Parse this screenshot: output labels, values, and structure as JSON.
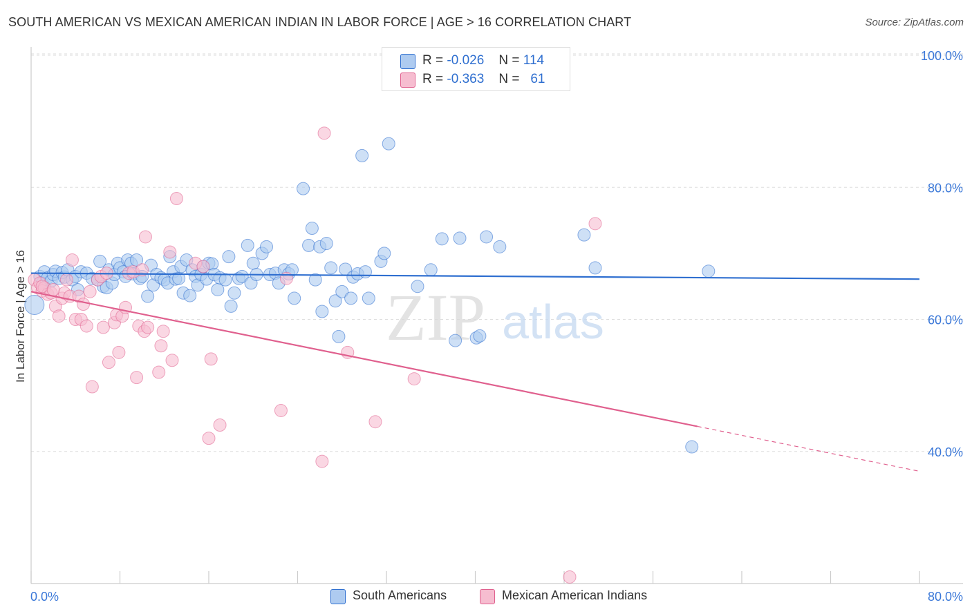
{
  "title": "SOUTH AMERICAN VS MEXICAN AMERICAN INDIAN IN LABOR FORCE | AGE > 16 CORRELATION CHART",
  "source": "Source: ZipAtlas.com",
  "watermark": {
    "zip": "ZIP",
    "atlas": "atlas"
  },
  "colors": {
    "blue": "#2f6fd0",
    "blue_fill": "#aecbf0",
    "pink": "#e0608e",
    "pink_fill": "#f6bdd0",
    "axis_text": "#3b78d8"
  },
  "legend": {
    "rows": [
      {
        "r_label": "R =",
        "r_value": "-0.026",
        "n_label": "N =",
        "n_value": "114"
      },
      {
        "r_label": "R =",
        "r_value": "-0.363",
        "n_label": "N =",
        "n_value": "61"
      }
    ]
  },
  "chart_data": {
    "type": "scatter",
    "title": "SOUTH AMERICAN VS MEXICAN AMERICAN INDIAN IN LABOR FORCE | AGE > 16 CORRELATION CHART",
    "xlabel": "",
    "ylabel": "In Labor Force | Age > 16",
    "xlim": [
      0,
      80
    ],
    "ylim": [
      20,
      100
    ],
    "x_tick_labels": [
      "0.0%",
      "80.0%"
    ],
    "y_ticks": [
      40,
      60,
      80,
      100
    ],
    "y_tick_labels": [
      "40.0%",
      "60.0%",
      "80.0%",
      "100.0%"
    ],
    "grid": true,
    "legend_position": "top-center",
    "series": [
      {
        "name": "South Americans",
        "r": -0.026,
        "n": 114,
        "trend": {
          "x": [
            0,
            80
          ],
          "y": [
            67.0,
            66.1
          ]
        },
        "points": [
          [
            0.3,
            62.2
          ],
          [
            0.8,
            66.5
          ],
          [
            1.0,
            65.5
          ],
          [
            1.2,
            67.2
          ],
          [
            1.5,
            66.3
          ],
          [
            1.8,
            65.8
          ],
          [
            2.0,
            66.8
          ],
          [
            2.2,
            67.3
          ],
          [
            2.5,
            66.2
          ],
          [
            2.8,
            67.1
          ],
          [
            3.0,
            66.4
          ],
          [
            3.3,
            67.5
          ],
          [
            3.7,
            66.0
          ],
          [
            4.0,
            66.5
          ],
          [
            4.2,
            64.5
          ],
          [
            4.5,
            67.2
          ],
          [
            5.0,
            67.0
          ],
          [
            5.5,
            66.2
          ],
          [
            6.0,
            66.0
          ],
          [
            6.2,
            68.8
          ],
          [
            6.5,
            65.0
          ],
          [
            6.8,
            64.8
          ],
          [
            7.0,
            67.5
          ],
          [
            7.3,
            65.5
          ],
          [
            7.5,
            66.8
          ],
          [
            7.8,
            68.5
          ],
          [
            8.0,
            67.8
          ],
          [
            8.3,
            67.2
          ],
          [
            8.5,
            66.5
          ],
          [
            8.7,
            69.0
          ],
          [
            9.0,
            68.5
          ],
          [
            9.2,
            66.9
          ],
          [
            9.5,
            69.0
          ],
          [
            9.8,
            66.2
          ],
          [
            10.0,
            66.5
          ],
          [
            10.5,
            63.5
          ],
          [
            10.8,
            68.2
          ],
          [
            11.0,
            65.2
          ],
          [
            11.3,
            66.8
          ],
          [
            11.7,
            66.3
          ],
          [
            12.0,
            66.0
          ],
          [
            12.3,
            65.5
          ],
          [
            12.5,
            69.5
          ],
          [
            12.8,
            67.2
          ],
          [
            13.0,
            66.1
          ],
          [
            13.3,
            66.2
          ],
          [
            13.5,
            68.0
          ],
          [
            13.7,
            64.0
          ],
          [
            14.0,
            69.0
          ],
          [
            14.3,
            63.6
          ],
          [
            14.5,
            67.5
          ],
          [
            14.8,
            66.5
          ],
          [
            15.0,
            65.2
          ],
          [
            15.3,
            66.8
          ],
          [
            15.5,
            68.0
          ],
          [
            15.8,
            66.1
          ],
          [
            16.0,
            68.5
          ],
          [
            16.3,
            68.4
          ],
          [
            16.5,
            66.8
          ],
          [
            16.8,
            64.5
          ],
          [
            17.0,
            66.3
          ],
          [
            17.5,
            66.0
          ],
          [
            17.8,
            69.5
          ],
          [
            18.0,
            62.0
          ],
          [
            18.3,
            64.0
          ],
          [
            18.7,
            66.2
          ],
          [
            19.0,
            66.5
          ],
          [
            19.5,
            71.2
          ],
          [
            19.8,
            65.5
          ],
          [
            20.0,
            68.5
          ],
          [
            20.3,
            66.8
          ],
          [
            20.8,
            70.0
          ],
          [
            21.2,
            71.0
          ],
          [
            21.5,
            66.8
          ],
          [
            22.0,
            67.0
          ],
          [
            22.3,
            65.5
          ],
          [
            22.8,
            67.5
          ],
          [
            23.2,
            66.9
          ],
          [
            23.5,
            67.5
          ],
          [
            23.7,
            63.2
          ],
          [
            24.5,
            79.8
          ],
          [
            25.0,
            71.2
          ],
          [
            25.3,
            73.8
          ],
          [
            25.6,
            66.0
          ],
          [
            26.0,
            71.0
          ],
          [
            26.2,
            61.2
          ],
          [
            26.6,
            71.5
          ],
          [
            27.0,
            67.8
          ],
          [
            27.4,
            62.8
          ],
          [
            27.7,
            57.4
          ],
          [
            28.0,
            64.2
          ],
          [
            28.3,
            67.6
          ],
          [
            28.8,
            63.2
          ],
          [
            29.0,
            66.4
          ],
          [
            29.4,
            66.9
          ],
          [
            29.8,
            84.8
          ],
          [
            30.1,
            67.2
          ],
          [
            30.4,
            63.2
          ],
          [
            31.5,
            68.8
          ],
          [
            31.8,
            70.0
          ],
          [
            32.2,
            86.6
          ],
          [
            34.8,
            65.0
          ],
          [
            36.0,
            67.5
          ],
          [
            37.0,
            72.2
          ],
          [
            38.2,
            56.8
          ],
          [
            38.6,
            72.3
          ],
          [
            40.1,
            57.2
          ],
          [
            40.4,
            57.5
          ],
          [
            41.0,
            72.5
          ],
          [
            42.2,
            71.0
          ],
          [
            49.8,
            72.8
          ],
          [
            50.8,
            67.8
          ],
          [
            61.0,
            67.3
          ],
          [
            59.5,
            40.7
          ]
        ]
      },
      {
        "name": "Mexican American Indians",
        "r": -0.363,
        "n": 61,
        "trend": {
          "x": [
            0,
            60
          ],
          "y": [
            64.2,
            43.8
          ]
        },
        "trend_dashed": {
          "x": [
            60,
            80
          ],
          "y": [
            43.8,
            37.0
          ]
        },
        "points": [
          [
            0.3,
            66.0
          ],
          [
            0.6,
            64.8
          ],
          [
            0.8,
            65.5
          ],
          [
            1.0,
            64.3
          ],
          [
            1.2,
            64.8
          ],
          [
            1.5,
            63.8
          ],
          [
            1.8,
            64.0
          ],
          [
            2.2,
            62.0
          ],
          [
            2.5,
            60.5
          ],
          [
            2.8,
            63.2
          ],
          [
            3.0,
            64.0
          ],
          [
            3.2,
            66.0
          ],
          [
            3.5,
            63.5
          ],
          [
            3.7,
            69.0
          ],
          [
            4.0,
            60.0
          ],
          [
            4.3,
            63.5
          ],
          [
            4.5,
            60.0
          ],
          [
            4.7,
            62.3
          ],
          [
            5.0,
            59.0
          ],
          [
            5.3,
            64.2
          ],
          [
            5.5,
            49.8
          ],
          [
            6.0,
            66.0
          ],
          [
            6.3,
            66.5
          ],
          [
            6.5,
            58.8
          ],
          [
            6.8,
            67.0
          ],
          [
            7.0,
            53.5
          ],
          [
            7.5,
            59.5
          ],
          [
            7.7,
            60.7
          ],
          [
            7.9,
            55.0
          ],
          [
            8.2,
            60.5
          ],
          [
            8.5,
            61.8
          ],
          [
            8.8,
            67.0
          ],
          [
            9.2,
            67.2
          ],
          [
            9.5,
            51.2
          ],
          [
            9.7,
            59.0
          ],
          [
            10.0,
            67.5
          ],
          [
            10.2,
            58.2
          ],
          [
            10.5,
            58.8
          ],
          [
            10.3,
            72.5
          ],
          [
            11.5,
            52.0
          ],
          [
            11.7,
            56.0
          ],
          [
            11.9,
            58.2
          ],
          [
            12.5,
            70.2
          ],
          [
            12.7,
            53.8
          ],
          [
            13.1,
            78.3
          ],
          [
            14.8,
            68.5
          ],
          [
            15.5,
            68.0
          ],
          [
            16.0,
            42.0
          ],
          [
            16.2,
            54.0
          ],
          [
            17.0,
            44.0
          ],
          [
            22.5,
            46.2
          ],
          [
            23.0,
            66.2
          ],
          [
            26.2,
            38.5
          ],
          [
            26.4,
            88.2
          ],
          [
            28.5,
            55.0
          ],
          [
            31.0,
            44.5
          ],
          [
            34.5,
            51.0
          ],
          [
            48.5,
            21.0
          ],
          [
            50.8,
            74.5
          ],
          [
            1.0,
            65.0
          ],
          [
            2.0,
            64.5
          ]
        ]
      }
    ]
  },
  "bottom_legend": [
    {
      "label": "South Americans"
    },
    {
      "label": "Mexican American Indians"
    }
  ]
}
